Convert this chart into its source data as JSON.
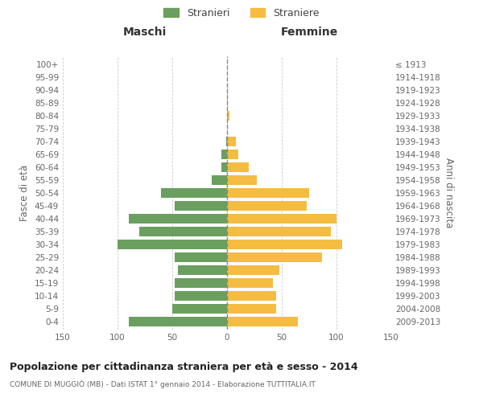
{
  "age_groups": [
    "0-4",
    "5-9",
    "10-14",
    "15-19",
    "20-24",
    "25-29",
    "30-34",
    "35-39",
    "40-44",
    "45-49",
    "50-54",
    "55-59",
    "60-64",
    "65-69",
    "70-74",
    "75-79",
    "80-84",
    "85-89",
    "90-94",
    "95-99",
    "100+"
  ],
  "birth_years": [
    "2009-2013",
    "2004-2008",
    "1999-2003",
    "1994-1998",
    "1989-1993",
    "1984-1988",
    "1979-1983",
    "1974-1978",
    "1969-1973",
    "1964-1968",
    "1959-1963",
    "1954-1958",
    "1949-1953",
    "1944-1948",
    "1939-1943",
    "1934-1938",
    "1929-1933",
    "1924-1928",
    "1919-1923",
    "1914-1918",
    "≤ 1913"
  ],
  "maschi": [
    90,
    50,
    48,
    48,
    45,
    48,
    100,
    80,
    90,
    48,
    60,
    14,
    5,
    5,
    1,
    0,
    0,
    0,
    0,
    0,
    0
  ],
  "femmine": [
    65,
    45,
    45,
    42,
    48,
    87,
    105,
    95,
    100,
    73,
    75,
    27,
    20,
    10,
    8,
    1,
    2,
    1,
    1,
    0,
    0
  ],
  "color_maschi": "#6a9f5f",
  "color_femmine": "#f5bc42",
  "title": "Popolazione per cittadinanza straniera per età e sesso - 2014",
  "subtitle": "COMUNE DI MUGGIÒ (MB) - Dati ISTAT 1° gennaio 2014 - Elaborazione TUTTITALIA.IT",
  "ylabel_left": "Fasce di età",
  "ylabel_right": "Anni di nascita",
  "xlabel_left": "Maschi",
  "xlabel_right": "Femmine",
  "legend_maschi": "Stranieri",
  "legend_femmine": "Straniere",
  "xlim": 150,
  "background_color": "#ffffff",
  "grid_color": "#cccccc"
}
